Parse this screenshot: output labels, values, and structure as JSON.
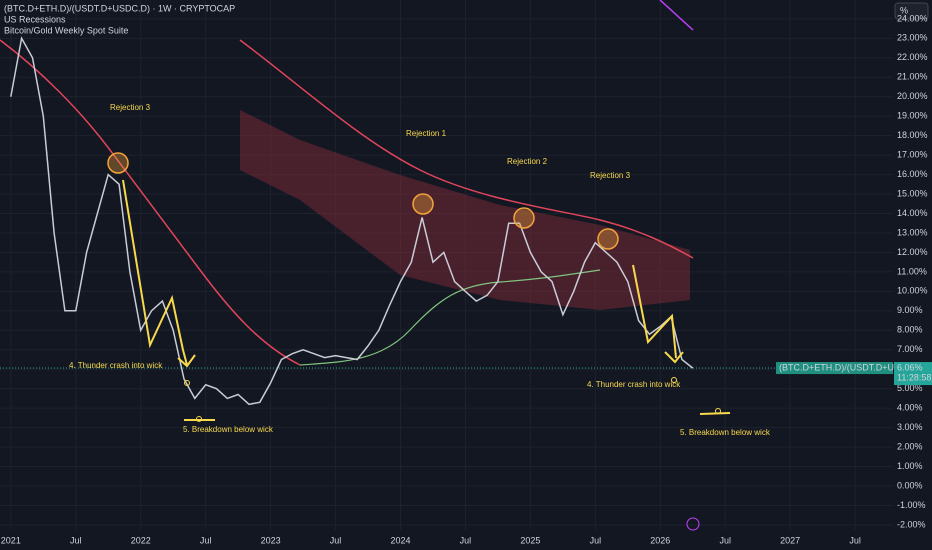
{
  "chart_data": {
    "type": "line",
    "title": "(BTC.D+ETH.D)/(USDT.D+USDC.D) · 1W · CRYPTOCAP",
    "indicators": [
      "US Recessions",
      "Bitcoin/Gold Weekly Spot Suite"
    ],
    "scale_button": "%",
    "annotations": [
      "Rejection 3",
      "Rejection 1",
      "Rejection 2",
      "Rejection 3",
      "4. Thunder crash into wick",
      "5. Breakdown below wick",
      "4. Thunder crash into wick",
      "5. Breakdown below wick"
    ],
    "xlim": [
      -1,
      81.5
    ],
    "xticks": [
      {
        "value": 0,
        "label": "2021"
      },
      {
        "value": 6,
        "label": "Jul"
      },
      {
        "value": 12,
        "label": "2022"
      },
      {
        "value": 18,
        "label": "Jul"
      },
      {
        "value": 24,
        "label": "2023"
      },
      {
        "value": 30,
        "label": "Jul"
      },
      {
        "value": 36,
        "label": "2024"
      },
      {
        "value": 42,
        "label": "Jul"
      },
      {
        "value": 48,
        "label": "2025"
      },
      {
        "value": 54,
        "label": "Jul"
      },
      {
        "value": 60,
        "label": "2026"
      },
      {
        "value": 66,
        "label": "Jul"
      },
      {
        "value": 72,
        "label": "2027"
      },
      {
        "value": 78,
        "label": "Jul"
      }
    ],
    "ylim": [
      -2.26,
      24.97
    ],
    "yticks": [
      {
        "value": 24,
        "label": "24.00%"
      },
      {
        "value": 23,
        "label": "23.00%"
      },
      {
        "value": 22,
        "label": "22.00%"
      },
      {
        "value": 21,
        "label": "21.00%"
      },
      {
        "value": 20,
        "label": "20.00%"
      },
      {
        "value": 19,
        "label": "19.00%"
      },
      {
        "value": 18,
        "label": "18.00%"
      },
      {
        "value": 17,
        "label": "17.00%"
      },
      {
        "value": 16,
        "label": "16.00%"
      },
      {
        "value": 15,
        "label": "15.00%"
      },
      {
        "value": 14,
        "label": "14.00%"
      },
      {
        "value": 13,
        "label": "13.00%"
      },
      {
        "value": 12,
        "label": "12.00%"
      },
      {
        "value": 11,
        "label": "11.00%"
      },
      {
        "value": 10,
        "label": "10.00%"
      },
      {
        "value": 9,
        "label": "9.00%"
      },
      {
        "value": 8,
        "label": "8.00%"
      },
      {
        "value": 7,
        "label": "7.00%"
      },
      {
        "value": 6,
        "label": "6.00%"
      },
      {
        "value": 5,
        "label": "5.00%"
      },
      {
        "value": 4,
        "label": "4.00%"
      },
      {
        "value": 3,
        "label": "3.00%"
      },
      {
        "value": 2,
        "label": "2.00%"
      },
      {
        "value": 1,
        "label": "1.00%"
      },
      {
        "value": 0,
        "label": "0.00%"
      },
      {
        "value": -1,
        "label": "-1.00%"
      },
      {
        "value": -2,
        "label": "-2.00%"
      }
    ],
    "grid": true,
    "series": [
      {
        "name": "(BTC.D+ETH.D)/(USDT.D+USDC.D)",
        "color": "#c9ccd6",
        "x": [
          0,
          1,
          2,
          3,
          4,
          5,
          6,
          7,
          8,
          9,
          10,
          11,
          12,
          13,
          14,
          15,
          16,
          17,
          18,
          19,
          20,
          21,
          22,
          23,
          24,
          25,
          26,
          27,
          28,
          29,
          30,
          31,
          32,
          33,
          34,
          35,
          36,
          37,
          38,
          39,
          40,
          41,
          42,
          43,
          44,
          45,
          46,
          47,
          48,
          49,
          50,
          51,
          52,
          53,
          54,
          55,
          56,
          57,
          58,
          59,
          60,
          61,
          62,
          63
        ],
        "values": [
          20,
          23,
          22,
          19,
          13,
          9,
          9,
          12,
          14,
          16,
          15.5,
          11,
          8,
          9,
          9.5,
          8,
          5.5,
          4.5,
          5.2,
          5,
          4.5,
          4.7,
          4.2,
          4.3,
          5.3,
          6.5,
          6.8,
          7,
          6.8,
          6.6,
          6.7,
          6.6,
          6.5,
          7.2,
          8,
          9.3,
          10.5,
          11.5,
          13.8,
          11.5,
          12,
          10.5,
          10,
          9.5,
          9.8,
          10.5,
          13.5,
          13.5,
          12,
          11,
          10.5,
          8.8,
          10,
          11.5,
          12.5,
          12,
          11.5,
          10.5,
          8.5,
          7.8,
          8.2,
          8.7,
          6.5,
          6.06
        ]
      }
    ],
    "last_value": {
      "value": 6.06,
      "label": "6.06%"
    },
    "countdown": "11:28:58"
  }
}
